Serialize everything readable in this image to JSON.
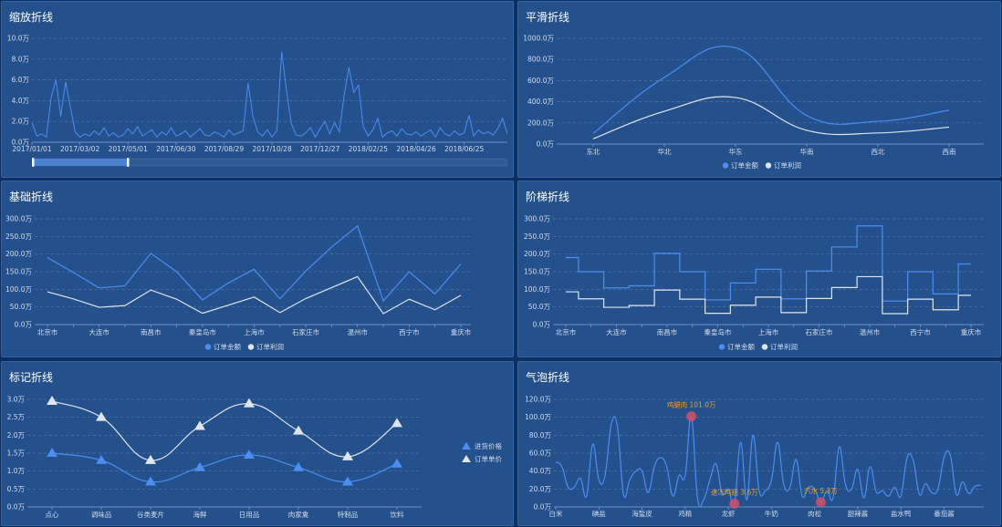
{
  "colors": {
    "blue": "#4a8ef0",
    "white": "#dfe5ee",
    "bubble": "#d0506a",
    "annotation": "#f0a01e"
  },
  "chart_data": [
    {
      "id": "zoom",
      "type": "line",
      "title": "缩放折线",
      "y_ticks": [
        "0.0万",
        "2.0万",
        "4.0万",
        "6.0万",
        "8.0万",
        "10.0万"
      ],
      "ylim": [
        0,
        10
      ],
      "unit": "万",
      "x_ticks": [
        "2017/01/01",
        "2017/03/02",
        "2017/05/01",
        "2017/06/30",
        "2017/08/29",
        "2017/10/28",
        "2017/12/27",
        "2018/02/25",
        "2018/04/26",
        "2018/06/25"
      ],
      "x_tick_interval_days": 60,
      "sample_interval_days": 6,
      "grid": true,
      "datazoom": {
        "start_percent": 0,
        "end_percent": 20
      },
      "values": [
        1.9,
        0.6,
        0.8,
        0.5,
        4.3,
        6.0,
        2.5,
        5.8,
        3.4,
        1.0,
        0.5,
        0.8,
        0.6,
        1.1,
        0.7,
        1.4,
        0.6,
        0.9,
        0.5,
        0.7,
        1.3,
        0.8,
        1.5,
        0.6,
        0.9,
        1.2,
        0.5,
        1.0,
        0.7,
        1.4,
        0.6,
        0.8,
        1.1,
        0.5,
        0.9,
        1.3,
        0.7,
        0.6,
        1.0,
        0.8,
        0.5,
        1.2,
        0.7,
        0.9,
        1.1,
        5.7,
        2.5,
        1.0,
        0.6,
        1.2,
        0.5,
        1.1,
        8.7,
        5.0,
        1.8,
        0.7,
        0.6,
        0.9,
        1.4,
        0.5,
        1.3,
        2.0,
        0.8,
        1.9,
        1.0,
        4.5,
        7.2,
        4.8,
        5.5,
        1.5,
        0.6,
        1.2,
        2.3,
        0.5,
        0.9,
        1.1,
        0.6,
        1.3,
        0.8,
        0.7,
        1.0,
        0.6,
        0.9,
        1.2,
        0.5,
        1.4,
        0.8,
        0.6,
        1.1,
        0.7,
        0.9,
        2.6,
        0.6,
        1.2,
        0.8,
        1.0,
        0.7,
        1.3,
        2.3,
        0.8
      ]
    },
    {
      "id": "smooth",
      "type": "line",
      "title": "平滑折线",
      "smooth": true,
      "y_ticks": [
        "0.0万",
        "200.0万",
        "400.0万",
        "600.0万",
        "800.0万",
        "1000.0万"
      ],
      "ylim": [
        0,
        1000
      ],
      "categories": [
        "东北",
        "华北",
        "华东",
        "华南",
        "西北",
        "西南"
      ],
      "series": [
        {
          "name": "订单金额",
          "values": [
            100,
            630,
            910,
            270,
            215,
            320
          ]
        },
        {
          "name": "订单利润",
          "values": [
            50,
            310,
            440,
            130,
            105,
            160
          ]
        }
      ],
      "legend": "bottom-center",
      "grid": true
    },
    {
      "id": "basic",
      "type": "line",
      "title": "基础折线",
      "y_ticks": [
        "0.0万",
        "50.0万",
        "100.0万",
        "150.0万",
        "200.0万",
        "250.0万",
        "300.0万"
      ],
      "ylim": [
        0,
        300
      ],
      "categories": [
        "北京市",
        "",
        "大连市",
        "",
        "南昌市",
        "",
        "秦皇岛市",
        "",
        "上海市",
        "",
        "石家庄市",
        "",
        "温州市",
        "",
        "西宁市",
        "",
        "重庆市"
      ],
      "series": [
        {
          "name": "订单金额",
          "values": [
            190,
            148,
            104,
            110,
            202,
            150,
            70,
            118,
            157,
            73,
            152,
            220,
            280,
            67,
            150,
            87,
            172
          ]
        },
        {
          "name": "订单利润",
          "values": [
            93,
            73,
            49,
            54,
            98,
            72,
            32,
            55,
            78,
            34,
            74,
            105,
            136,
            31,
            72,
            42,
            83
          ]
        }
      ],
      "legend": "bottom-center",
      "grid": true
    },
    {
      "id": "step",
      "type": "line",
      "title": "阶梯折线",
      "step": "middle",
      "y_ticks": [
        "0.0万",
        "50.0万",
        "100.0万",
        "150.0万",
        "200.0万",
        "250.0万",
        "300.0万"
      ],
      "ylim": [
        0,
        300
      ],
      "categories": [
        "北京市",
        "",
        "大连市",
        "",
        "南昌市",
        "",
        "秦皇岛市",
        "",
        "上海市",
        "",
        "石家庄市",
        "",
        "温州市",
        "",
        "西宁市",
        "",
        "重庆市"
      ],
      "series": [
        {
          "name": "订单金额",
          "values": [
            190,
            150,
            104,
            110,
            202,
            150,
            70,
            118,
            157,
            73,
            152,
            220,
            280,
            67,
            150,
            87,
            172
          ]
        },
        {
          "name": "订单利润",
          "values": [
            93,
            73,
            49,
            54,
            98,
            72,
            32,
            55,
            78,
            34,
            74,
            105,
            136,
            31,
            72,
            42,
            83
          ]
        }
      ],
      "legend": "bottom-center",
      "grid": true
    },
    {
      "id": "marker",
      "type": "line",
      "title": "标记折线",
      "smooth": true,
      "marker": "triangle",
      "y_ticks": [
        "0.0万",
        "0.5万",
        "1.0万",
        "1.5万",
        "2.0万",
        "2.5万",
        "3.0万"
      ],
      "ylim": [
        0,
        3
      ],
      "categories": [
        "点心",
        "调味品",
        "谷类麦片",
        "海鲜",
        "日用品",
        "肉家禽",
        "特制品",
        "饮料"
      ],
      "series": [
        {
          "name": "进货价格",
          "values": [
            1.5,
            1.3,
            0.7,
            1.1,
            1.45,
            1.1,
            0.7,
            1.2
          ]
        },
        {
          "name": "订单单价",
          "values": [
            2.95,
            2.5,
            1.3,
            2.25,
            2.88,
            2.12,
            1.4,
            2.33
          ]
        }
      ],
      "legend": "right",
      "grid": true
    },
    {
      "id": "bubble",
      "type": "line",
      "title": "气泡折线",
      "smooth": true,
      "y_ticks": [
        "0.0万",
        "20.0万",
        "40.0万",
        "60.0万",
        "80.0万",
        "100.0万",
        "120.0万"
      ],
      "ylim": [
        0,
        120
      ],
      "x_tick_labels": [
        "白米",
        "碘盐",
        "海蜇皮",
        "鸡精",
        "龙虾",
        "牛奶",
        "肉松",
        "甜辣酱",
        "盐水鸭",
        "番茄酱"
      ],
      "x_tick_every": 7,
      "values": [
        50,
        45,
        22,
        22,
        32,
        12,
        70,
        30,
        35,
        92,
        90,
        14,
        30,
        40,
        40,
        16,
        45,
        55,
        45,
        12,
        35,
        35,
        101,
        10,
        8,
        30,
        48,
        15,
        20,
        3.6,
        72,
        8,
        80,
        18,
        18,
        30,
        72,
        25,
        22,
        53,
        12,
        22,
        20,
        5.3,
        18,
        10,
        67,
        25,
        20,
        42,
        10,
        45,
        17,
        18,
        12,
        22,
        12,
        55,
        52,
        14,
        26,
        16,
        20,
        55,
        58,
        14,
        28,
        15,
        23,
        24
      ],
      "mark_points": [
        {
          "index": 22,
          "label": "鸡腿肉 101.0万"
        },
        {
          "index": 29,
          "label": "速冻鸡翅 3.6万"
        },
        {
          "index": 43,
          "label": "汽水 5.3万"
        }
      ],
      "grid": true
    }
  ]
}
